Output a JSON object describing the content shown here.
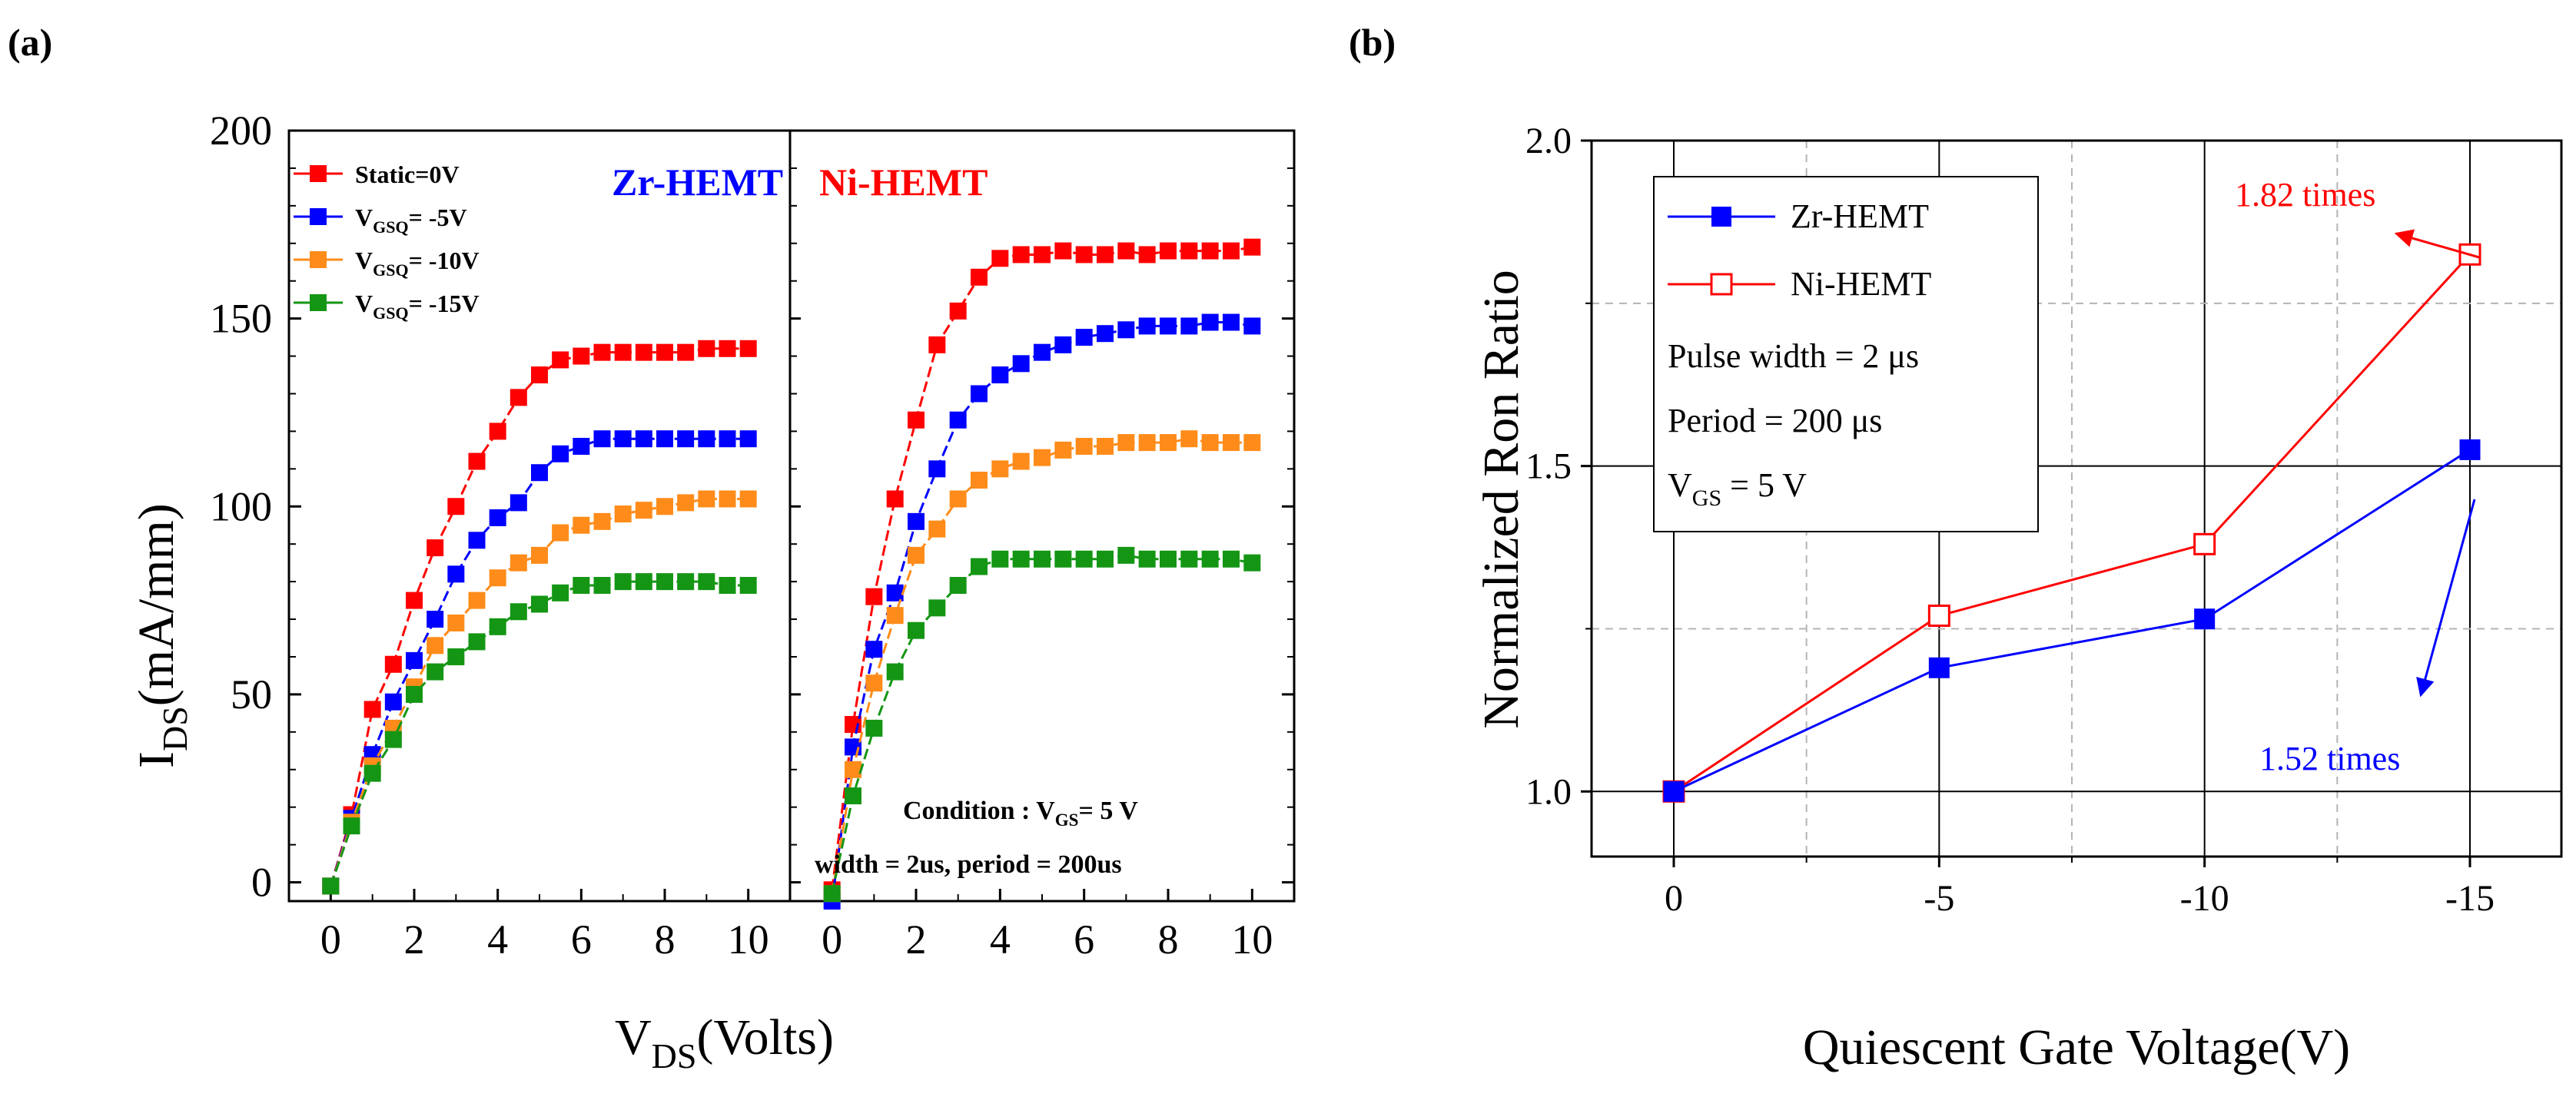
{
  "panel_a_label": "(a)",
  "panel_b_label": "(b)",
  "chart_data": [
    {
      "type": "line",
      "panel": "(a)",
      "subplot_title": "Zr-HEMT",
      "xlabel": "V_DS(Volts)",
      "ylabel": "I_DS(mA/mm)",
      "xlim": [
        -1,
        11
      ],
      "ylim": [
        -5,
        200
      ],
      "x_ticks": [
        0,
        2,
        4,
        6,
        8,
        10
      ],
      "y_ticks": [
        0,
        50,
        100,
        150,
        200
      ],
      "x": [
        0,
        0.5,
        1,
        1.5,
        2,
        2.5,
        3,
        3.5,
        4,
        4.5,
        5,
        5.5,
        6,
        6.5,
        7,
        7.5,
        8,
        8.5,
        9,
        9.5,
        10
      ],
      "legend": [
        {
          "main": "Static=0V",
          "sub": "",
          "tail": ""
        },
        {
          "main": "V",
          "sub": "GSQ",
          "tail": "= -5V"
        },
        {
          "main": "V",
          "sub": "GSQ",
          "tail": "= -10V"
        },
        {
          "main": "V",
          "sub": "GSQ",
          "tail": "= -15V"
        }
      ],
      "series": [
        {
          "name": "Static=0V",
          "color": "#ff0000",
          "values": [
            -1,
            18,
            46,
            58,
            75,
            89,
            100,
            112,
            120,
            129,
            135,
            139,
            140,
            141,
            141,
            141,
            141,
            141,
            142,
            142,
            142
          ]
        },
        {
          "name": "V_GSQ= -5V",
          "color": "#0000ff",
          "values": [
            -1,
            17,
            34,
            48,
            59,
            70,
            82,
            91,
            97,
            101,
            109,
            114,
            116,
            118,
            118,
            118,
            118,
            118,
            118,
            118,
            118
          ]
        },
        {
          "name": "V_GSQ= -10V",
          "color": "#ff8c1a",
          "values": [
            -1,
            16,
            31,
            41,
            52,
            63,
            69,
            75,
            81,
            85,
            87,
            93,
            95,
            96,
            98,
            99,
            100,
            101,
            102,
            102,
            102
          ]
        },
        {
          "name": "V_GSQ= -15V",
          "color": "#149614",
          "values": [
            -1,
            15,
            29,
            38,
            50,
            56,
            60,
            64,
            68,
            72,
            74,
            77,
            79,
            79,
            80,
            80,
            80,
            80,
            80,
            79,
            79
          ]
        }
      ]
    },
    {
      "type": "line",
      "panel": "(a)",
      "subplot_title": "Ni-HEMT",
      "xlabel": "V_DS(Volts)",
      "xlim": [
        -1,
        11
      ],
      "ylim": [
        -5,
        200
      ],
      "x_ticks": [
        0,
        2,
        4,
        6,
        8,
        10
      ],
      "annotation_line1": "Condition : V",
      "annotation_line1_sub": "GS",
      "annotation_line1_tail": "= 5 V",
      "annotation_line2": "width = 2us, period = 200us",
      "x": [
        0,
        0.5,
        1,
        1.5,
        2,
        2.5,
        3,
        3.5,
        4,
        4.5,
        5,
        5.5,
        6,
        6.5,
        7,
        7.5,
        8,
        8.5,
        9,
        9.5,
        10
      ],
      "series": [
        {
          "name": "Static=0V",
          "color": "#ff0000",
          "values": [
            -2,
            42,
            76,
            102,
            123,
            143,
            152,
            161,
            166,
            167,
            167,
            168,
            167,
            167,
            168,
            167,
            168,
            168,
            168,
            168,
            169
          ]
        },
        {
          "name": "V_GSQ= -5V",
          "color": "#0000ff",
          "values": [
            -5,
            36,
            62,
            77,
            96,
            110,
            123,
            130,
            135,
            138,
            141,
            143,
            145,
            146,
            147,
            148,
            148,
            148,
            149,
            149,
            148
          ]
        },
        {
          "name": "V_GSQ= -10V",
          "color": "#ff8c1a",
          "values": [
            -3,
            30,
            53,
            71,
            87,
            94,
            102,
            107,
            110,
            112,
            113,
            115,
            116,
            116,
            117,
            117,
            117,
            118,
            117,
            117,
            117
          ]
        },
        {
          "name": "V_GSQ= -15V",
          "color": "#149614",
          "values": [
            -3,
            23,
            41,
            56,
            67,
            73,
            79,
            84,
            86,
            86,
            86,
            86,
            86,
            86,
            87,
            86,
            86,
            86,
            86,
            86,
            85
          ]
        }
      ]
    },
    {
      "type": "line",
      "panel": "(b)",
      "xlabel": "Quiescent Gate Voltage(V)",
      "ylabel": "Normalized Ron Ratio",
      "x_categories": [
        "0",
        "-5",
        "-10",
        "-15"
      ],
      "ylim": [
        0.9,
        2.0
      ],
      "y_ticks": [
        "1.0",
        "1.5",
        "2.0"
      ],
      "series": [
        {
          "name": "Zr-HEMT",
          "color": "#0000ff",
          "marker": "filled-square",
          "values": [
            1.0,
            1.19,
            1.265,
            1.525
          ]
        },
        {
          "name": "Ni-HEMT",
          "color": "#ff0000",
          "marker": "open-square",
          "values": [
            1.0,
            1.27,
            1.38,
            1.825
          ]
        }
      ],
      "legend_extra": [
        {
          "main": "Pulse width = 2 μs",
          "sub": "",
          "tail": ""
        },
        {
          "main": "Period = 200 μs",
          "sub": "",
          "tail": ""
        },
        {
          "main": "V",
          "sub": "GS",
          "tail": " = 5 V"
        }
      ],
      "annotations": [
        {
          "text": "1.82 times",
          "color": "#ff0000"
        },
        {
          "text": "1.52 times",
          "color": "#0000ff"
        }
      ]
    }
  ]
}
